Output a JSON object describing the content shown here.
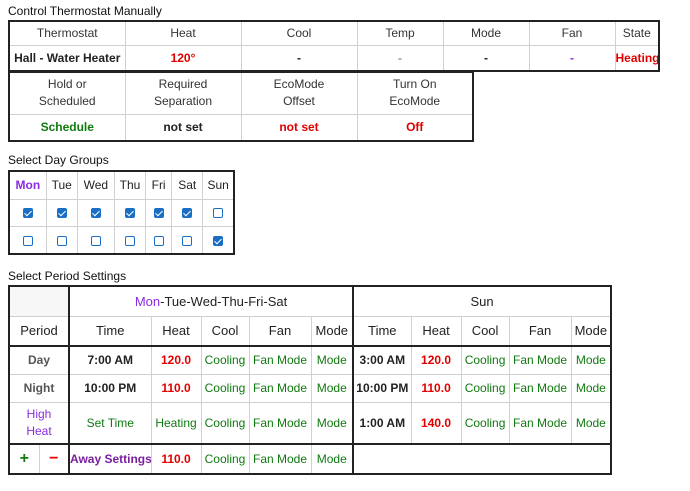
{
  "sections": {
    "manual": "Control Thermostat Manually",
    "days": "Select Day Groups",
    "periods": "Select Period Settings"
  },
  "manual_table": {
    "headers": [
      "Thermostat",
      "Heat",
      "Cool",
      "Temp",
      "Mode",
      "Fan",
      "State"
    ],
    "values": [
      "Hall - Water Heater",
      "120°",
      "-",
      "-",
      "-",
      "-",
      "Heating"
    ]
  },
  "hold_table": {
    "headers": [
      "Hold or Scheduled",
      "Required Separation",
      "EcoMode Offset",
      "Turn On EcoMode"
    ],
    "values": [
      "Schedule",
      "not set",
      "not set",
      "Off"
    ]
  },
  "day_groups": {
    "days": [
      "Mon",
      "Tue",
      "Wed",
      "Thu",
      "Fri",
      "Sat",
      "Sun"
    ],
    "rows": [
      [
        true,
        true,
        true,
        true,
        true,
        true,
        false
      ],
      [
        false,
        false,
        false,
        false,
        false,
        false,
        true
      ]
    ]
  },
  "period_table": {
    "group1_first": "Mon",
    "group1_rest": "-Tue-Wed-Thu-Fri-Sat",
    "group2": "Sun",
    "col_period": "Period",
    "cols": [
      "Time",
      "Heat",
      "Cool",
      "Fan",
      "Mode"
    ],
    "rows": [
      {
        "period": "Day",
        "g1": [
          "7:00 AM",
          "120.0",
          "Cooling",
          "Fan Mode",
          "Mode"
        ],
        "g2": [
          "3:00 AM",
          "120.0",
          "Cooling",
          "Fan Mode",
          "Mode"
        ]
      },
      {
        "period": "Night",
        "g1": [
          "10:00 PM",
          "110.0",
          "Cooling",
          "Fan Mode",
          "Mode"
        ],
        "g2": [
          "10:00 PM",
          "110.0",
          "Cooling",
          "Fan Mode",
          "Mode"
        ]
      },
      {
        "period": "High Heat",
        "g1": [
          "Set Time",
          "Heating",
          "Cooling",
          "Fan Mode",
          "Mode"
        ],
        "g2": [
          "1:00 AM",
          "140.0",
          "Cooling",
          "Fan Mode",
          "Mode"
        ]
      }
    ],
    "plus": "+",
    "minus": "−",
    "away": {
      "label": "Away Settings",
      "values": [
        "110.0",
        "Cooling",
        "Fan Mode",
        "Mode"
      ]
    }
  },
  "colors": {
    "red": "#e00000",
    "green": "#107a10",
    "purple": "#8a2be2",
    "checkbox": "#1a6fc4"
  }
}
